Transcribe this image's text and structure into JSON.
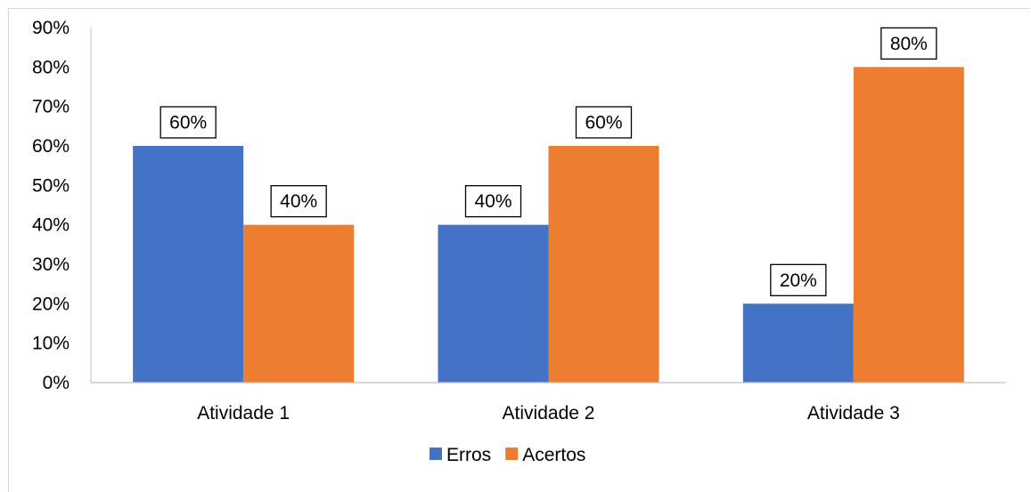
{
  "chart_data": {
    "type": "bar",
    "categories": [
      "Atividade 1",
      "Atividade 2",
      "Atividade 3"
    ],
    "series": [
      {
        "name": "Erros",
        "values": [
          60,
          40,
          20
        ],
        "color": "#4472c4"
      },
      {
        "name": "Acertos",
        "values": [
          40,
          60,
          80
        ],
        "color": "#ed7d31"
      }
    ],
    "ylim": [
      0,
      90
    ],
    "yticks": [
      0,
      10,
      20,
      30,
      40,
      50,
      60,
      70,
      80,
      90
    ],
    "ytick_labels": [
      "0%",
      "10%",
      "20%",
      "30%",
      "40%",
      "50%",
      "60%",
      "70%",
      "80%",
      "90%"
    ],
    "data_labels": [
      [
        "60%",
        "40%",
        "20%"
      ],
      [
        "40%",
        "60%",
        "80%"
      ]
    ],
    "grid": false,
    "legend": "bottom",
    "title": "",
    "xlabel": "",
    "ylabel": ""
  }
}
